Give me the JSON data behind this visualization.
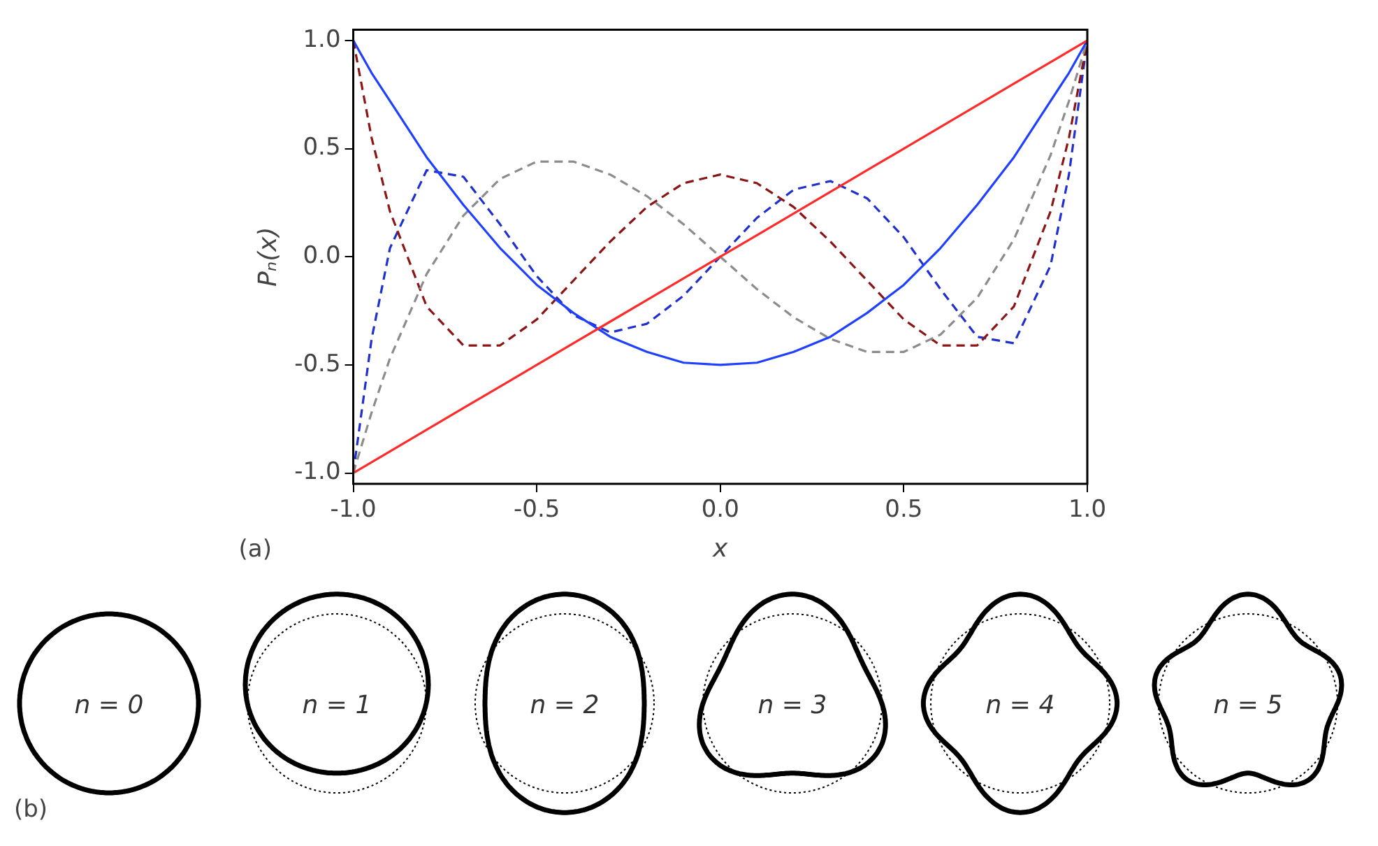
{
  "chart_data": {
    "type": "line",
    "xlabel": "x",
    "ylabel": "Pₙ(x)",
    "x": [
      -1,
      -0.95,
      -0.9,
      -0.8,
      -0.7,
      -0.6,
      -0.5,
      -0.4,
      -0.3,
      -0.2,
      -0.1,
      0,
      0.1,
      0.2,
      0.3,
      0.4,
      0.5,
      0.6,
      0.7,
      0.8,
      0.9,
      0.95,
      1
    ],
    "series": [
      {
        "color": "#ff2a2a",
        "line_style": "solid",
        "values": [
          -1,
          -0.95,
          -0.9,
          -0.8,
          -0.7,
          -0.6,
          -0.5,
          -0.4,
          -0.3,
          -0.2,
          -0.1,
          0,
          0.1,
          0.2,
          0.3,
          0.4,
          0.5,
          0.6,
          0.7,
          0.8,
          0.9,
          0.95,
          1
        ]
      },
      {
        "color": "#2040ff",
        "line_style": "solid",
        "values": [
          1,
          0.85,
          0.72,
          0.46,
          0.24,
          0.04,
          -0.13,
          -0.26,
          -0.37,
          -0.44,
          -0.49,
          -0.5,
          -0.49,
          -0.44,
          -0.37,
          -0.26,
          -0.13,
          0.04,
          0.24,
          0.46,
          0.72,
          0.85,
          1
        ]
      },
      {
        "color": "#8c8c8c",
        "line_style": "dashed",
        "values": [
          -1,
          -0.72,
          -0.47,
          -0.08,
          0.19,
          0.36,
          0.44,
          0.44,
          0.38,
          0.28,
          0.15,
          0,
          -0.15,
          -0.28,
          -0.38,
          -0.44,
          -0.44,
          -0.36,
          -0.19,
          0.08,
          0.47,
          0.72,
          1
        ]
      },
      {
        "color": "#8b1515",
        "line_style": "dashed",
        "values": [
          1,
          0.55,
          0.21,
          -0.23,
          -0.41,
          -0.41,
          -0.29,
          -0.11,
          0.07,
          0.23,
          0.34,
          0.38,
          0.34,
          0.23,
          0.07,
          -0.11,
          -0.29,
          -0.41,
          -0.41,
          -0.23,
          0.21,
          0.55,
          1
        ]
      },
      {
        "color": "#2030d0",
        "line_style": "dashed",
        "values": [
          -1,
          -0.38,
          0.04,
          0.4,
          0.37,
          0.15,
          -0.09,
          -0.27,
          -0.35,
          -0.31,
          -0.18,
          0,
          0.18,
          0.31,
          0.35,
          0.27,
          0.09,
          -0.15,
          -0.37,
          -0.4,
          -0.04,
          0.38,
          1
        ]
      }
    ],
    "xlim": [
      -1,
      1
    ],
    "ylim": [
      -1.05,
      1.05
    ],
    "xticks": [
      {
        "value": -1,
        "label": "-1.0"
      },
      {
        "value": -0.5,
        "label": "-0.5"
      },
      {
        "value": 0,
        "label": "0.0"
      },
      {
        "value": 0.5,
        "label": "0.5"
      },
      {
        "value": 1,
        "label": "1.0"
      }
    ],
    "yticks": [
      {
        "value": -1,
        "label": "-1.0"
      },
      {
        "value": -0.5,
        "label": "-0.5"
      },
      {
        "value": 0,
        "label": "0.0"
      },
      {
        "value": 0.5,
        "label": "0.5"
      },
      {
        "value": 1,
        "label": "1.0"
      }
    ],
    "annotations": [
      "(a)",
      "(b)",
      "n = 0",
      "n = 1",
      "n = 2",
      "n = 3",
      "n = 4",
      "n = 5"
    ]
  }
}
